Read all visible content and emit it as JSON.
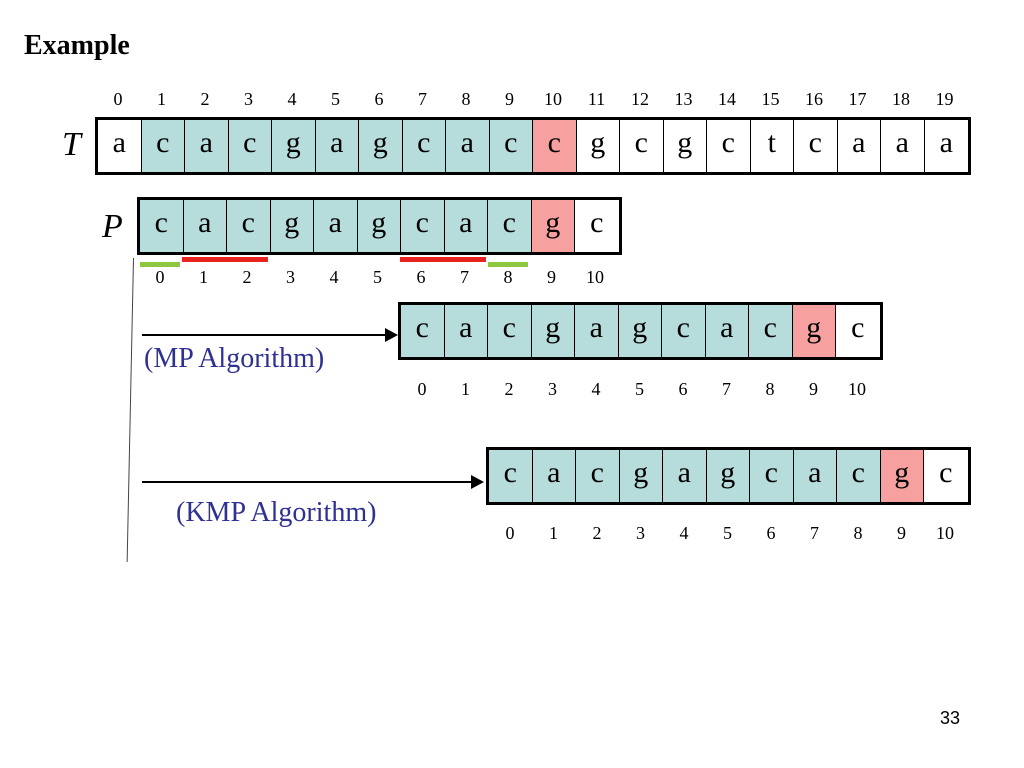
{
  "title": "Example",
  "text_row": {
    "label": "T",
    "indices": [
      "0",
      "1",
      "2",
      "3",
      "4",
      "5",
      "6",
      "7",
      "8",
      "9",
      "10",
      "11",
      "12",
      "13",
      "14",
      "15",
      "16",
      "17",
      "18",
      "19"
    ],
    "chars": [
      "a",
      "c",
      "a",
      "c",
      "g",
      "a",
      "g",
      "c",
      "a",
      "c",
      "c",
      "g",
      "c",
      "g",
      "c",
      "t",
      "c",
      "a",
      "a",
      "a"
    ],
    "states": [
      "pl",
      "hl",
      "hl",
      "hl",
      "hl",
      "hl",
      "hl",
      "hl",
      "hl",
      "hl",
      "mm",
      "pl",
      "pl",
      "pl",
      "pl",
      "pl",
      "pl",
      "pl",
      "pl",
      "pl"
    ]
  },
  "pattern_row": {
    "label": "P",
    "chars": [
      "c",
      "a",
      "c",
      "g",
      "a",
      "g",
      "c",
      "a",
      "c",
      "g",
      "c"
    ],
    "states": [
      "hl",
      "hl",
      "hl",
      "hl",
      "hl",
      "hl",
      "hl",
      "hl",
      "hl",
      "mm",
      "pl"
    ],
    "indices": [
      "0",
      "1",
      "2",
      "3",
      "4",
      "5",
      "6",
      "7",
      "8",
      "9",
      "10"
    ],
    "underline_colors": {
      "red": "#e8231f",
      "green": "#8dc63f"
    }
  },
  "mp_row": {
    "label": "(MP Algorithm)",
    "chars": [
      "c",
      "a",
      "c",
      "g",
      "a",
      "g",
      "c",
      "a",
      "c",
      "g",
      "c"
    ],
    "states": [
      "hl",
      "hl",
      "hl",
      "hl",
      "hl",
      "hl",
      "hl",
      "hl",
      "hl",
      "mm",
      "pl"
    ],
    "indices": [
      "0",
      "1",
      "2",
      "3",
      "4",
      "5",
      "6",
      "7",
      "8",
      "9",
      "10"
    ]
  },
  "kmp_row": {
    "label": "(KMP Algorithm)",
    "chars": [
      "c",
      "a",
      "c",
      "g",
      "a",
      "g",
      "c",
      "a",
      "c",
      "g",
      "c"
    ],
    "states": [
      "hl",
      "hl",
      "hl",
      "hl",
      "hl",
      "hl",
      "hl",
      "hl",
      "hl",
      "mm",
      "pl"
    ],
    "indices": [
      "0",
      "1",
      "2",
      "3",
      "4",
      "5",
      "6",
      "7",
      "8",
      "9",
      "10"
    ]
  },
  "page_number": "33"
}
